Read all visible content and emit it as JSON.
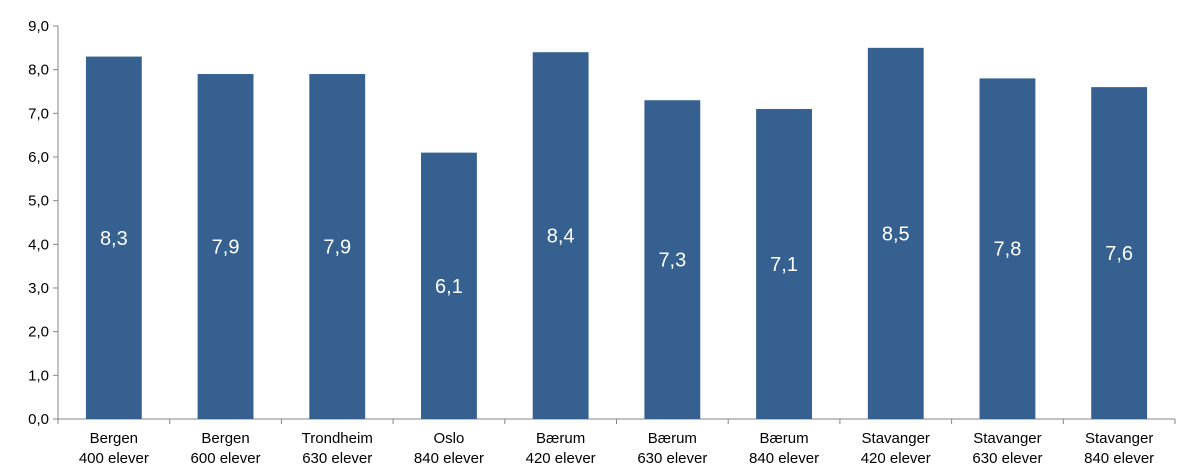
{
  "chart_data": {
    "type": "bar",
    "categories": [
      [
        "Bergen",
        "400 elever"
      ],
      [
        "Bergen",
        "600 elever"
      ],
      [
        "Trondheim",
        "630 elever"
      ],
      [
        "Oslo",
        "840 elever"
      ],
      [
        "Bærum",
        "420 elever"
      ],
      [
        "Bærum",
        "630 elever"
      ],
      [
        "Bærum",
        "840 elever"
      ],
      [
        "Stavanger",
        "420 elever"
      ],
      [
        "Stavanger",
        "630 elever"
      ],
      [
        "Stavanger",
        "840 elever"
      ]
    ],
    "values": [
      8.3,
      7.9,
      7.9,
      6.1,
      8.4,
      7.3,
      7.1,
      8.5,
      7.8,
      7.6
    ],
    "data_labels": [
      "8,3",
      "7,9",
      "7,9",
      "6,1",
      "8,4",
      "7,3",
      "7,1",
      "8,5",
      "7,8",
      "7,6"
    ],
    "yticks": [
      "0,0",
      "1,0",
      "2,0",
      "3,0",
      "4,0",
      "5,0",
      "6,0",
      "7,0",
      "8,0",
      "9,0"
    ],
    "ylim": [
      0,
      9
    ],
    "grid": false,
    "legend": "none",
    "title": "",
    "xlabel": "",
    "ylabel": "",
    "bar_color": "#35608F"
  }
}
